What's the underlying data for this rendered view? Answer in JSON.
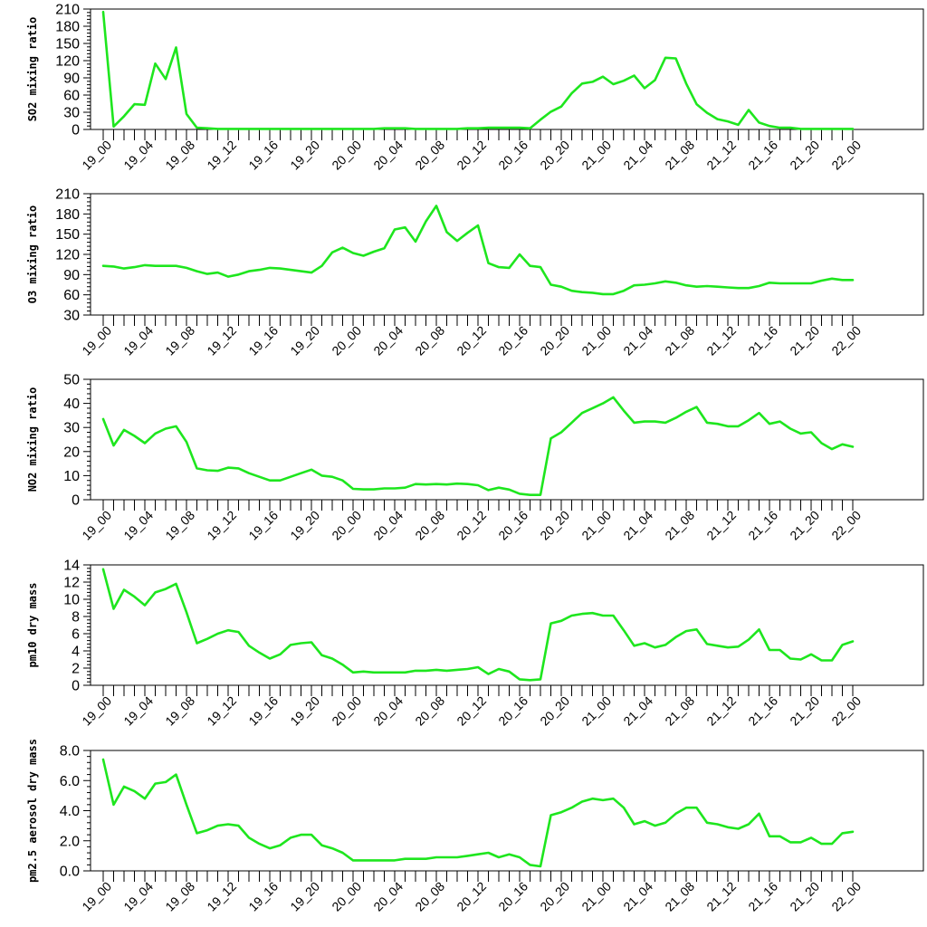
{
  "chart_data": [
    {
      "type": "line",
      "ylabel": "SO2 mixing ratio",
      "ylim": [
        0,
        210
      ],
      "yticks": [
        0,
        30,
        60,
        90,
        120,
        150,
        180,
        210
      ],
      "ytick_labels": [
        "0",
        "30",
        "60",
        "90",
        "120",
        "150",
        "180",
        "210"
      ],
      "xtick_labels": [
        "19_00",
        "19_04",
        "19_08",
        "19_12",
        "19_16",
        "19_20",
        "20_00",
        "20_04",
        "20_08",
        "20_12",
        "20_16",
        "20_20",
        "21_00",
        "21_04",
        "21_08",
        "21_12",
        "21_16",
        "21_20",
        "22_00"
      ],
      "series": [
        {
          "color": "#1ee61e",
          "values": [
            205,
            5,
            23,
            44,
            43,
            115,
            88,
            143,
            27,
            3,
            2,
            1,
            1,
            1,
            1,
            1,
            1,
            1,
            1,
            1,
            1,
            1,
            1,
            1,
            1,
            1,
            1,
            2,
            2,
            2,
            1,
            1,
            1,
            1,
            1,
            2,
            2,
            3,
            3,
            3,
            3,
            2,
            17,
            31,
            40,
            63,
            80,
            83,
            92,
            79,
            85,
            94,
            72,
            86,
            125,
            124,
            80,
            44,
            29,
            18,
            14,
            8,
            34,
            12,
            6,
            3,
            3,
            1,
            1,
            1,
            1,
            1,
            1
          ]
        }
      ]
    },
    {
      "type": "line",
      "ylabel": "O3 mixing ratio",
      "ylim": [
        30,
        210
      ],
      "yticks": [
        30,
        60,
        90,
        120,
        150,
        180,
        210
      ],
      "ytick_labels": [
        "30",
        "60",
        "90",
        "120",
        "150",
        "180",
        "210"
      ],
      "xtick_labels": [
        "19_00",
        "19_04",
        "19_08",
        "19_12",
        "19_16",
        "19_20",
        "20_00",
        "20_04",
        "20_08",
        "20_12",
        "20_16",
        "20_20",
        "21_00",
        "21_04",
        "21_08",
        "21_12",
        "21_16",
        "21_20",
        "22_00"
      ],
      "series": [
        {
          "color": "#1ee61e",
          "values": [
            103,
            102,
            99,
            101,
            104,
            103,
            103,
            103,
            100,
            95,
            91,
            93,
            87,
            90,
            95,
            97,
            100,
            99,
            97,
            95,
            93,
            103,
            123,
            130,
            122,
            118,
            124,
            129,
            157,
            160,
            139,
            169,
            192,
            153,
            140,
            152,
            163,
            107,
            101,
            100,
            120,
            103,
            101,
            75,
            72,
            66,
            64,
            63,
            61,
            61,
            66,
            74,
            75,
            77,
            80,
            78,
            74,
            72,
            73,
            72,
            71,
            70,
            70,
            73,
            78,
            77,
            77,
            77,
            77,
            81,
            84,
            82,
            82
          ]
        }
      ]
    },
    {
      "type": "line",
      "ylabel": "NO2 mixing ratio",
      "ylim": [
        0,
        50
      ],
      "yticks": [
        0,
        10,
        20,
        30,
        40,
        50
      ],
      "ytick_labels": [
        "0",
        "10",
        "20",
        "30",
        "40",
        "50"
      ],
      "xtick_labels": [
        "19_00",
        "19_04",
        "19_08",
        "19_12",
        "19_16",
        "19_20",
        "20_00",
        "20_04",
        "20_08",
        "20_12",
        "20_16",
        "20_20",
        "21_00",
        "21_04",
        "21_08",
        "21_12",
        "21_16",
        "21_20",
        "22_00"
      ],
      "series": [
        {
          "color": "#1ee61e",
          "values": [
            33.5,
            22.5,
            29,
            26.5,
            23.5,
            27.5,
            29.5,
            30.5,
            24,
            13,
            12.2,
            12,
            13.3,
            13,
            11,
            9.5,
            8,
            8,
            9.5,
            11,
            12.5,
            10,
            9.5,
            8,
            4.5,
            4.3,
            4.3,
            4.7,
            4.7,
            5,
            6.5,
            6.3,
            6.5,
            6.3,
            6.7,
            6.5,
            6,
            4,
            5,
            4.2,
            2.5,
            2,
            2,
            25.5,
            28,
            32,
            36,
            38,
            40,
            42.5,
            37,
            32,
            32.5,
            32.5,
            32,
            34,
            36.5,
            38.5,
            32,
            31.5,
            30.5,
            30.5,
            33,
            36,
            31.5,
            32.5,
            29.5,
            27.5,
            28,
            23.5,
            21,
            23,
            22
          ]
        }
      ]
    },
    {
      "type": "line",
      "ylabel": "pm10 dry mass",
      "ylim": [
        0,
        14
      ],
      "yticks": [
        0,
        2,
        4,
        6,
        8,
        10,
        12,
        14
      ],
      "ytick_labels": [
        "0",
        "2",
        "4",
        "6",
        "8",
        "10",
        "12",
        "14"
      ],
      "xtick_labels": [
        "19_00",
        "19_04",
        "19_08",
        "19_12",
        "19_16",
        "19_20",
        "20_00",
        "20_04",
        "20_08",
        "20_12",
        "20_16",
        "20_20",
        "21_00",
        "21_04",
        "21_08",
        "21_12",
        "21_16",
        "21_20",
        "22_00"
      ],
      "series": [
        {
          "color": "#1ee61e",
          "values": [
            13.5,
            8.9,
            11.1,
            10.3,
            9.3,
            10.8,
            11.2,
            11.8,
            8.5,
            4.9,
            5.4,
            6,
            6.4,
            6.2,
            4.6,
            3.8,
            3.1,
            3.6,
            4.7,
            4.9,
            5,
            3.5,
            3.1,
            2.4,
            1.5,
            1.6,
            1.5,
            1.5,
            1.5,
            1.5,
            1.7,
            1.7,
            1.8,
            1.7,
            1.8,
            1.9,
            2.1,
            1.3,
            1.9,
            1.6,
            0.7,
            0.6,
            0.7,
            7.2,
            7.5,
            8.1,
            8.3,
            8.4,
            8.1,
            8.1,
            6.4,
            4.6,
            4.9,
            4.4,
            4.7,
            5.6,
            6.3,
            6.5,
            4.8,
            4.6,
            4.4,
            4.5,
            5.3,
            6.5,
            4.1,
            4.1,
            3.1,
            3,
            3.6,
            2.9,
            2.9,
            4.7,
            5.1
          ]
        }
      ]
    },
    {
      "type": "line",
      "ylabel": "pm2.5 aerosol dry mass",
      "ylim": [
        0,
        8
      ],
      "yticks": [
        0,
        2,
        4,
        6,
        8
      ],
      "ytick_labels": [
        "0.0",
        "2.0",
        "4.0",
        "6.0",
        "8.0"
      ],
      "xtick_labels": [
        "19_00",
        "19_04",
        "19_08",
        "19_12",
        "19_16",
        "19_20",
        "20_00",
        "20_04",
        "20_08",
        "20_12",
        "20_16",
        "20_20",
        "21_00",
        "21_04",
        "21_08",
        "21_12",
        "21_16",
        "21_20",
        "22_00"
      ],
      "series": [
        {
          "color": "#1ee61e",
          "values": [
            7.4,
            4.4,
            5.6,
            5.3,
            4.8,
            5.8,
            5.9,
            6.4,
            4.4,
            2.5,
            2.7,
            3,
            3.1,
            3,
            2.2,
            1.8,
            1.5,
            1.7,
            2.2,
            2.4,
            2.4,
            1.7,
            1.5,
            1.2,
            0.7,
            0.7,
            0.7,
            0.7,
            0.7,
            0.8,
            0.8,
            0.8,
            0.9,
            0.9,
            0.9,
            1,
            1.1,
            1.2,
            0.9,
            1.1,
            0.9,
            0.4,
            0.3,
            3.7,
            3.9,
            4.2,
            4.6,
            4.8,
            4.7,
            4.8,
            4.2,
            3.1,
            3.3,
            3,
            3.2,
            3.8,
            4.2,
            4.2,
            3.2,
            3.1,
            2.9,
            2.8,
            3.1,
            3.8,
            2.3,
            2.3,
            1.9,
            1.9,
            2.2,
            1.8,
            1.8,
            2.5,
            2.6
          ]
        }
      ]
    }
  ]
}
